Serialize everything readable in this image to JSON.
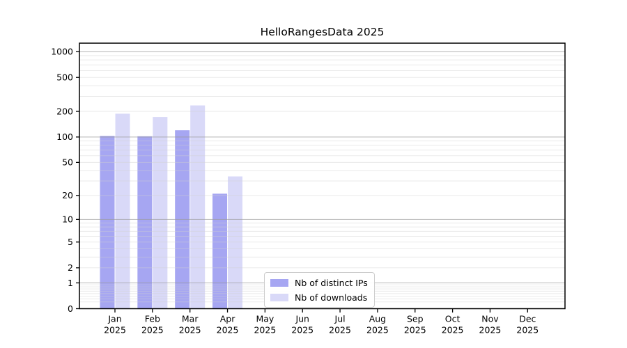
{
  "chart_data": {
    "type": "bar",
    "title": "HelloRangesData 2025",
    "scale": "log1p",
    "categories": [
      "Jan",
      "Feb",
      "Mar",
      "Apr",
      "May",
      "Jun",
      "Jul",
      "Aug",
      "Sep",
      "Oct",
      "Nov",
      "Dec"
    ],
    "year_label": "2025",
    "series": [
      {
        "name": "Nb of distinct IPs",
        "color": "#a6a6f2",
        "values": [
          103,
          102,
          120,
          21,
          0,
          0,
          0,
          0,
          0,
          0,
          0,
          0
        ]
      },
      {
        "name": "Nb of downloads",
        "color": "#d9d9f8",
        "values": [
          188,
          172,
          235,
          34,
          0,
          0,
          0,
          0,
          0,
          0,
          0,
          0
        ]
      }
    ],
    "y_ticks": [
      0,
      1,
      2,
      5,
      10,
      20,
      50,
      100,
      200,
      500,
      1000
    ],
    "ylim": [
      0,
      1250
    ],
    "grid": {
      "major_lines": [
        1,
        10,
        100,
        1000
      ],
      "minor_subs": [
        2,
        3,
        4,
        5,
        6,
        7,
        8,
        9
      ],
      "major_color": "#999999",
      "minor_color": "#d0d0d0"
    },
    "axis_color": "#000000",
    "legend_position": "lower-center-left"
  }
}
